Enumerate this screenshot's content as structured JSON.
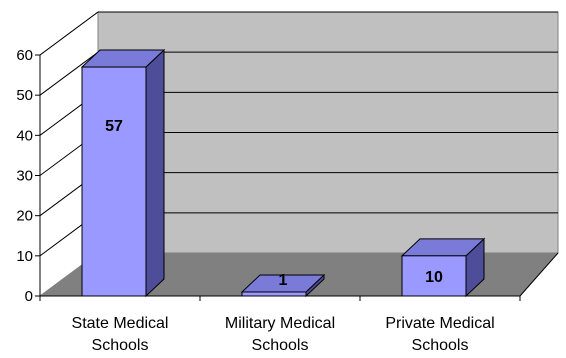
{
  "chart_data": {
    "type": "bar",
    "categories": [
      [
        "State Medical",
        "Schools"
      ],
      [
        "Military Medical",
        "Schools"
      ],
      [
        "Private Medical",
        "Schools"
      ]
    ],
    "values": [
      57,
      1,
      10
    ],
    "data_labels": [
      "57",
      "1",
      "10"
    ],
    "ylim": [
      0,
      60
    ],
    "yticks": [
      "0",
      "10",
      "20",
      "30",
      "40",
      "50",
      "60"
    ],
    "grid": true,
    "legend": "none",
    "three_d": true,
    "colors": {
      "bar_front": "#9999ff",
      "bar_top": "#7a7ad9",
      "bar_side": "#4d4d99",
      "back_wall": "#c0c0c0",
      "side_wall": "#ffffff",
      "floor": "#808080",
      "gridline": "#000000"
    }
  }
}
